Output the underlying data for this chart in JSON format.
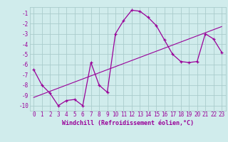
{
  "xlabel": "Windchill (Refroidissement éolien,°C)",
  "x_data": [
    0,
    1,
    2,
    3,
    4,
    5,
    6,
    7,
    8,
    9,
    10,
    11,
    12,
    13,
    14,
    15,
    16,
    17,
    18,
    19,
    20,
    21,
    22,
    23
  ],
  "y_main": [
    -6.5,
    -8.0,
    -8.8,
    -10.0,
    -9.5,
    -9.4,
    -10.0,
    -5.8,
    -8.0,
    -8.7,
    -3.0,
    -1.7,
    -0.7,
    -0.8,
    -1.4,
    -2.2,
    -3.6,
    -5.0,
    -5.7,
    -5.8,
    -5.7,
    -3.0,
    -3.5,
    -4.8
  ],
  "y_trend": [
    -9.2,
    -8.9,
    -8.6,
    -8.3,
    -8.0,
    -7.7,
    -7.4,
    -7.1,
    -6.8,
    -6.5,
    -6.2,
    -5.9,
    -5.6,
    -5.3,
    -5.0,
    -4.7,
    -4.4,
    -4.1,
    -3.8,
    -3.5,
    -3.2,
    -2.9,
    -2.6,
    -2.3
  ],
  "line_color": "#990099",
  "bg_color": "#d0ecec",
  "grid_color": "#aacccc",
  "ylim": [
    -10.5,
    -0.4
  ],
  "xlim": [
    -0.5,
    23.5
  ],
  "yticks": [
    -10,
    -9,
    -8,
    -7,
    -6,
    -5,
    -4,
    -3,
    -2,
    -1
  ],
  "xticks": [
    0,
    1,
    2,
    3,
    4,
    5,
    6,
    7,
    8,
    9,
    10,
    11,
    12,
    13,
    14,
    15,
    16,
    17,
    18,
    19,
    20,
    21,
    22,
    23
  ],
  "tick_fontsize": 5.5,
  "xlabel_fontsize": 6.0,
  "marker_size": 3.5
}
